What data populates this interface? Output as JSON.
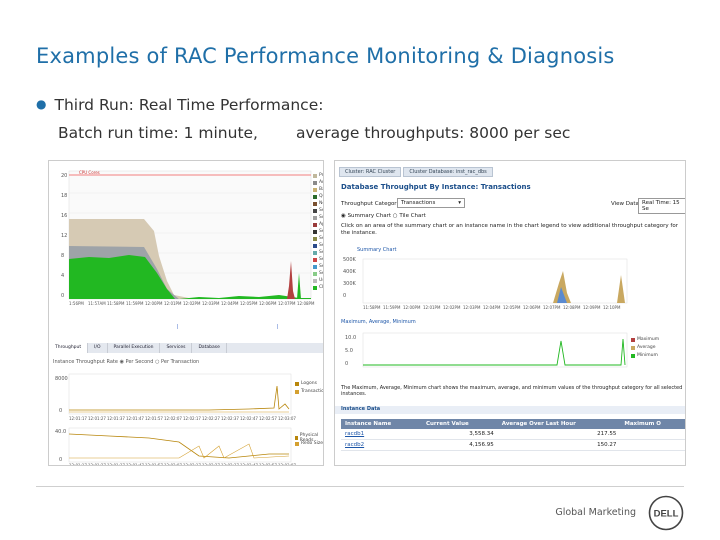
{
  "slide": {
    "title": "Examples of RAC Performance Monitoring & Diagnosis",
    "bullet": "Third Run: Real Time Performance:",
    "subline_left": "Batch run time: 1 minute,",
    "subline_right": "average throughputs: 8000 per sec",
    "footer": "Global Marketing",
    "logo": "DELL"
  },
  "left_screenshot": {
    "top_legend": [
      "Pro",
      "Ar",
      "Ba",
      "Qu",
      "Ne",
      "Ser",
      "Sc",
      "Ap",
      "Ser",
      "Ser",
      "Ser",
      "Ser",
      "Ser",
      "Ser",
      "Ser",
      "Us",
      "CPU"
    ],
    "top_yticks": [
      "20",
      "18",
      "16",
      "12",
      "8",
      "4",
      "0"
    ],
    "top_xticks": [
      "1:56PM",
      "11:57AM",
      "11:58PM",
      "11:59PM",
      "12:00PM",
      "12:01PM",
      "12:02PM",
      "12:03PM",
      "12:04PM",
      "12:05PM",
      "12:06PM",
      "12:07PM",
      "12:08PM"
    ],
    "tabs": [
      "Throughput",
      "I/O",
      "Parallel Execution",
      "Services",
      "Database"
    ],
    "radio_label": "Instance Throughput Rate",
    "radio_options": [
      "Per Second",
      "Per Transaction"
    ],
    "mid_legend": [
      "Logons",
      "Transactions"
    ],
    "mid_yticks": [
      "8000",
      "0"
    ],
    "bottom_legend": [
      "Physical Reads",
      "Redo Size"
    ],
    "bottom_yticks": [
      "40.0",
      "0"
    ],
    "xticks_small": [
      "12:01:17",
      "12:01:27",
      "12:01:37",
      "12:01:47",
      "12:01:57",
      "12:02:07",
      "12:02:17",
      "12:02:27",
      "12:02:37",
      "12:02:47",
      "12:02:57",
      "12:03:07"
    ]
  },
  "right_screenshot": {
    "breadcrumb_tabs": [
      "Cluster: RAC Cluster",
      "Cluster Database: inst_rac_dbs"
    ],
    "heading": "Database Throughput By Instance: Transactions",
    "throughput_category_label": "Throughput Category",
    "throughput_category_value": "Transactions",
    "view_data_label": "View Data",
    "view_data_value": "Real Time: 15 Se",
    "summary_label": "Summary Chart",
    "tile_label": "Tile Chart",
    "instruction": "Click on an area of the summary chart or an instance name in the chart legend to view additional throughput category for the instance.",
    "summary_chart_caption": "Summary Chart",
    "summary_yticks": [
      "500K",
      "400K",
      "300K",
      "0"
    ],
    "summary_xticks": [
      "11:58PM",
      "11:59PM",
      "12:00PM",
      "12:01PM",
      "12:02PM",
      "12:03PM",
      "12:04PM",
      "12:05PM",
      "12:06PM",
      "12:07PM",
      "12:08PM",
      "12:09PM",
      "12:10PM"
    ],
    "mam_caption": "Maximum, Average, Minimum",
    "mam_yticks": [
      "10.0",
      "5.0",
      "0"
    ],
    "mam_legend": [
      "Maximum",
      "Average",
      "Minimum"
    ],
    "description": "The Maximum, Average, Minimum chart shows the maximum, average, and minimum values of the throughput category for all selected instances.",
    "instance_data_label": "Instance Data",
    "table": {
      "headers": [
        "Instance Name",
        "Current Value",
        "Average Over Last Hour",
        "Maximum O"
      ],
      "rows": [
        {
          "name": "racdb1",
          "current": "3,558.34",
          "average": "217.55",
          "max": ""
        },
        {
          "name": "racdb2",
          "current": "4,156.95",
          "average": "150.27",
          "max": ""
        }
      ]
    }
  },
  "colors": {
    "title_blue": "#1f6fa8",
    "chart_green": "#22b822",
    "chart_tan": "#d6cab4",
    "chart_gray": "#9ea3a8",
    "table_header": "#6f86a8"
  }
}
